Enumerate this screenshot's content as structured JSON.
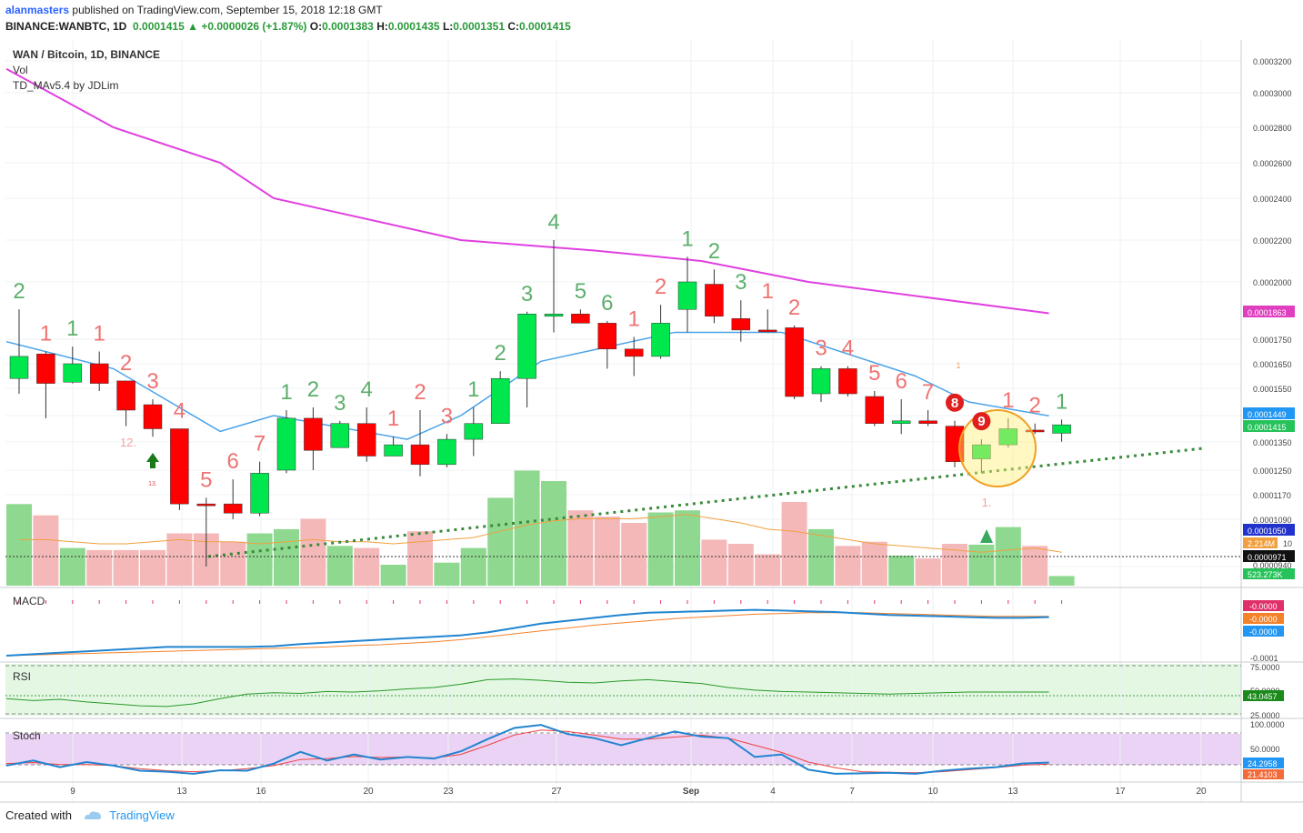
{
  "header": {
    "author": "alanmasters",
    "published": "published on TradingView.com, September 15, 2018 12:18 GMT",
    "symbol": "BINANCE:WANBTC, 1D",
    "last": "0.0001415",
    "change": "+0.0000026 (+1.87%)",
    "o_label": "O:",
    "o_val": "0.0001383",
    "h_label": "H:",
    "h_val": "0.0001435",
    "l_label": "L:",
    "l_val": "0.0001351",
    "c_label": "C:",
    "c_val": "0.0001415"
  },
  "legend": {
    "title": "WAN / Bitcoin, 1D, BINANCE",
    "vol": "Vol",
    "indicator": "TD_MAv5.4 by JDLim"
  },
  "panes": {
    "macd": "MACD",
    "rsi": "RSI",
    "stoch": "Stoch"
  },
  "footer": {
    "created": "Created with",
    "brand": "TradingView"
  },
  "colors": {
    "up": "#00e64d",
    "down": "#ff0000",
    "ma_slow": "#e040e0",
    "ma_fast": "#4aa3e8",
    "vol_up": "#8fd88f",
    "vol_down": "#f4b8b8",
    "trend": "#3a8a3a",
    "rsi_bg": "#e3f7e3",
    "stoch_bg": "#ead3f5"
  },
  "chart_data": {
    "type": "candlestick",
    "x_tick_labels": [
      "9",
      "13",
      "16",
      "20",
      "23",
      "27",
      "Sep",
      "4",
      "7",
      "10",
      "13",
      "17",
      "20"
    ],
    "y_tick_labels": [
      "0.0003200",
      "0.0003000",
      "0.0002800",
      "0.0002600",
      "0.0002400",
      "0.0002200",
      "0.0002000",
      "0.0001750",
      "0.0001650",
      "0.0001550",
      "0.0001450",
      "0.0001350",
      "0.0001250",
      "0.0001170",
      "0.0001090",
      "0.0001050",
      "0.0000971",
      "0.0000940"
    ],
    "price_badges": [
      "0.0001863",
      "0.0001449",
      "0.0001415",
      "0.0001050",
      "0.0000971"
    ],
    "vol_badges": [
      "2.214M",
      "10",
      "523.273K"
    ],
    "candles": [
      {
        "o": 0.000159,
        "h": 0.000188,
        "l": 0.000153,
        "c": 0.000168
      },
      {
        "o": 0.000169,
        "h": 0.00017,
        "l": 0.000144,
        "c": 0.000157
      },
      {
        "o": 0.0001575,
        "h": 0.000172,
        "l": 0.000157,
        "c": 0.000165
      },
      {
        "o": 0.000165,
        "h": 0.00017,
        "l": 0.000154,
        "c": 0.000157
      },
      {
        "o": 0.000158,
        "h": 0.000158,
        "l": 0.000141,
        "c": 0.000147
      },
      {
        "o": 0.000149,
        "h": 0.000151,
        "l": 0.000137,
        "c": 0.00014
      },
      {
        "o": 0.00014,
        "h": 0.00014,
        "l": 0.000112,
        "c": 0.000114
      },
      {
        "o": 0.000114,
        "h": 0.000116,
        "l": 9.4e-05,
        "c": 0.0001135
      },
      {
        "o": 0.000114,
        "h": 0.000122,
        "l": 0.000109,
        "c": 0.000111
      },
      {
        "o": 0.000111,
        "h": 0.000128,
        "l": 0.00011,
        "c": 0.000124
      },
      {
        "o": 0.000125,
        "h": 0.000147,
        "l": 0.000124,
        "c": 0.000144
      },
      {
        "o": 0.000144,
        "h": 0.000148,
        "l": 0.000125,
        "c": 0.000132
      },
      {
        "o": 0.000133,
        "h": 0.000143,
        "l": 0.000133,
        "c": 0.000142
      },
      {
        "o": 0.000142,
        "h": 0.000148,
        "l": 0.000128,
        "c": 0.00013
      },
      {
        "o": 0.00013,
        "h": 0.000137,
        "l": 0.00013,
        "c": 0.000134
      },
      {
        "o": 0.000134,
        "h": 0.000147,
        "l": 0.000123,
        "c": 0.000127
      },
      {
        "o": 0.000127,
        "h": 0.000138,
        "l": 0.000126,
        "c": 0.000136
      },
      {
        "o": 0.000136,
        "h": 0.000148,
        "l": 0.00013,
        "c": 0.000142
      },
      {
        "o": 0.000142,
        "h": 0.000162,
        "l": 0.000142,
        "c": 0.000159
      },
      {
        "o": 0.000159,
        "h": 0.000187,
        "l": 0.000148,
        "c": 0.000186
      },
      {
        "o": 0.000185,
        "h": 0.00022,
        "l": 0.000178,
        "c": 0.000186
      },
      {
        "o": 0.000186,
        "h": 0.000188,
        "l": 0.000182,
        "c": 0.000182
      },
      {
        "o": 0.000182,
        "h": 0.000183,
        "l": 0.000163,
        "c": 0.000171
      },
      {
        "o": 0.000171,
        "h": 0.000176,
        "l": 0.00016,
        "c": 0.000168
      },
      {
        "o": 0.000168,
        "h": 0.00019,
        "l": 0.000167,
        "c": 0.000182
      },
      {
        "o": 0.000188,
        "h": 0.000212,
        "l": 0.000178,
        "c": 0.0002
      },
      {
        "o": 0.000199,
        "h": 0.000206,
        "l": 0.000182,
        "c": 0.000185
      },
      {
        "o": 0.000184,
        "h": 0.000192,
        "l": 0.000174,
        "c": 0.000179
      },
      {
        "o": 0.000179,
        "h": 0.000188,
        "l": 0.000178,
        "c": 0.0001785
      },
      {
        "o": 0.00018,
        "h": 0.000181,
        "l": 0.000151,
        "c": 0.000152
      },
      {
        "o": 0.000153,
        "h": 0.000164,
        "l": 0.00015,
        "c": 0.000163
      },
      {
        "o": 0.000163,
        "h": 0.000164,
        "l": 0.000152,
        "c": 0.000153
      },
      {
        "o": 0.000152,
        "h": 0.000154,
        "l": 0.000141,
        "c": 0.000142
      },
      {
        "o": 0.000142,
        "h": 0.000151,
        "l": 0.000138,
        "c": 0.000143
      },
      {
        "o": 0.000143,
        "h": 0.000147,
        "l": 0.000141,
        "c": 0.000142
      },
      {
        "o": 0.000141,
        "h": 0.000143,
        "l": 0.000126,
        "c": 0.000128
      },
      {
        "o": 0.000129,
        "h": 0.000136,
        "l": 0.000124,
        "c": 0.000134
      },
      {
        "o": 0.000134,
        "h": 0.000144,
        "l": 0.000133,
        "c": 0.00014
      },
      {
        "o": 0.0001395,
        "h": 0.000142,
        "l": 0.000138,
        "c": 0.000139
      },
      {
        "o": 0.0001383,
        "h": 0.0001435,
        "l": 0.0001351,
        "c": 0.0001415
      }
    ],
    "volume": [
      1.95,
      1.68,
      0.9,
      0.85,
      0.85,
      0.85,
      1.25,
      1.25,
      1.05,
      1.25,
      1.35,
      1.6,
      0.95,
      0.9,
      0.5,
      1.3,
      0.55,
      0.9,
      2.1,
      2.75,
      2.5,
      1.8,
      1.65,
      1.5,
      1.75,
      1.8,
      1.1,
      1.0,
      0.75,
      2.0,
      1.35,
      0.95,
      1.05,
      0.72,
      0.65,
      1.0,
      0.98,
      1.4,
      0.95,
      0.23
    ],
    "vol_up": [
      true,
      false,
      true,
      false,
      false,
      false,
      false,
      false,
      false,
      true,
      true,
      false,
      true,
      false,
      true,
      false,
      true,
      true,
      true,
      true,
      true,
      false,
      false,
      false,
      true,
      true,
      false,
      false,
      false,
      false,
      true,
      false,
      false,
      true,
      false,
      false,
      true,
      true,
      false,
      true
    ],
    "td_labels": [
      "2",
      "1",
      "1",
      "1",
      "2",
      "3",
      "4",
      "5",
      "6",
      "7",
      "1",
      "2",
      "3",
      "4",
      "1",
      "2",
      "3",
      "1",
      "2",
      "3",
      "4",
      "5",
      "6",
      "1",
      "2",
      "1",
      "2",
      "3",
      "1",
      "2",
      "3",
      "4",
      "5",
      "6",
      "7",
      "8",
      "9",
      "1",
      "2",
      "1"
    ],
    "td_green": [
      true,
      false,
      true,
      false,
      false,
      false,
      false,
      false,
      false,
      false,
      true,
      true,
      true,
      true,
      false,
      false,
      false,
      true,
      true,
      true,
      true,
      true,
      true,
      false,
      false,
      true,
      true,
      true,
      false,
      false,
      false,
      false,
      false,
      false,
      false,
      false,
      false,
      false,
      false,
      true
    ],
    "ma_slow": [
      0.000315,
      0.00028,
      0.00026,
      0.00024,
      0.00022,
      0.000215,
      0.00021,
      0.0002,
      0.0001863
    ],
    "ma_fast": [
      0.000174,
      0.000163,
      0.000139,
      0.000145,
      0.000136,
      0.000145,
      0.000166,
      0.000178,
      0.000178,
      0.00016,
      0.00015,
      0.0001449
    ],
    "annotations": [
      "12.",
      "13.",
      "1.",
      "1"
    ],
    "macd_badges": [
      "-0.0000",
      "-0.0000",
      "-0.0000",
      "-0.0001"
    ],
    "rsi_ticks": [
      "75.0000",
      "50.0000",
      "25.0000"
    ],
    "rsi_value": "43.0457",
    "rsi_series": [
      33,
      30,
      32,
      28,
      25,
      22,
      21,
      25,
      33,
      40,
      42,
      41,
      44,
      43,
      45,
      48,
      50,
      55,
      62,
      63,
      61,
      58,
      57,
      60,
      62,
      59,
      56,
      50,
      46,
      44,
      43,
      42,
      41,
      40,
      41,
      42,
      43,
      43,
      43,
      43
    ],
    "stoch_ticks": [
      "100.0000",
      "50.0000"
    ],
    "stoch_k_value": "24.2958",
    "stoch_d_value": "21.4103",
    "stoch_k": [
      18,
      28,
      15,
      25,
      18,
      8,
      6,
      2,
      9,
      8,
      22,
      45,
      28,
      40,
      30,
      35,
      32,
      46,
      70,
      92,
      98,
      80,
      72,
      58,
      72,
      85,
      75,
      72,
      35,
      40,
      10,
      2,
      3,
      4,
      2,
      8,
      12,
      15,
      22,
      24
    ],
    "stoch_d": [
      22,
      24,
      20,
      20,
      18,
      12,
      8,
      6,
      8,
      12,
      18,
      30,
      32,
      36,
      34,
      35,
      33,
      40,
      58,
      78,
      88,
      85,
      78,
      70,
      70,
      74,
      78,
      72,
      58,
      44,
      25,
      14,
      6,
      5,
      4,
      6,
      10,
      14,
      19,
      21
    ]
  }
}
